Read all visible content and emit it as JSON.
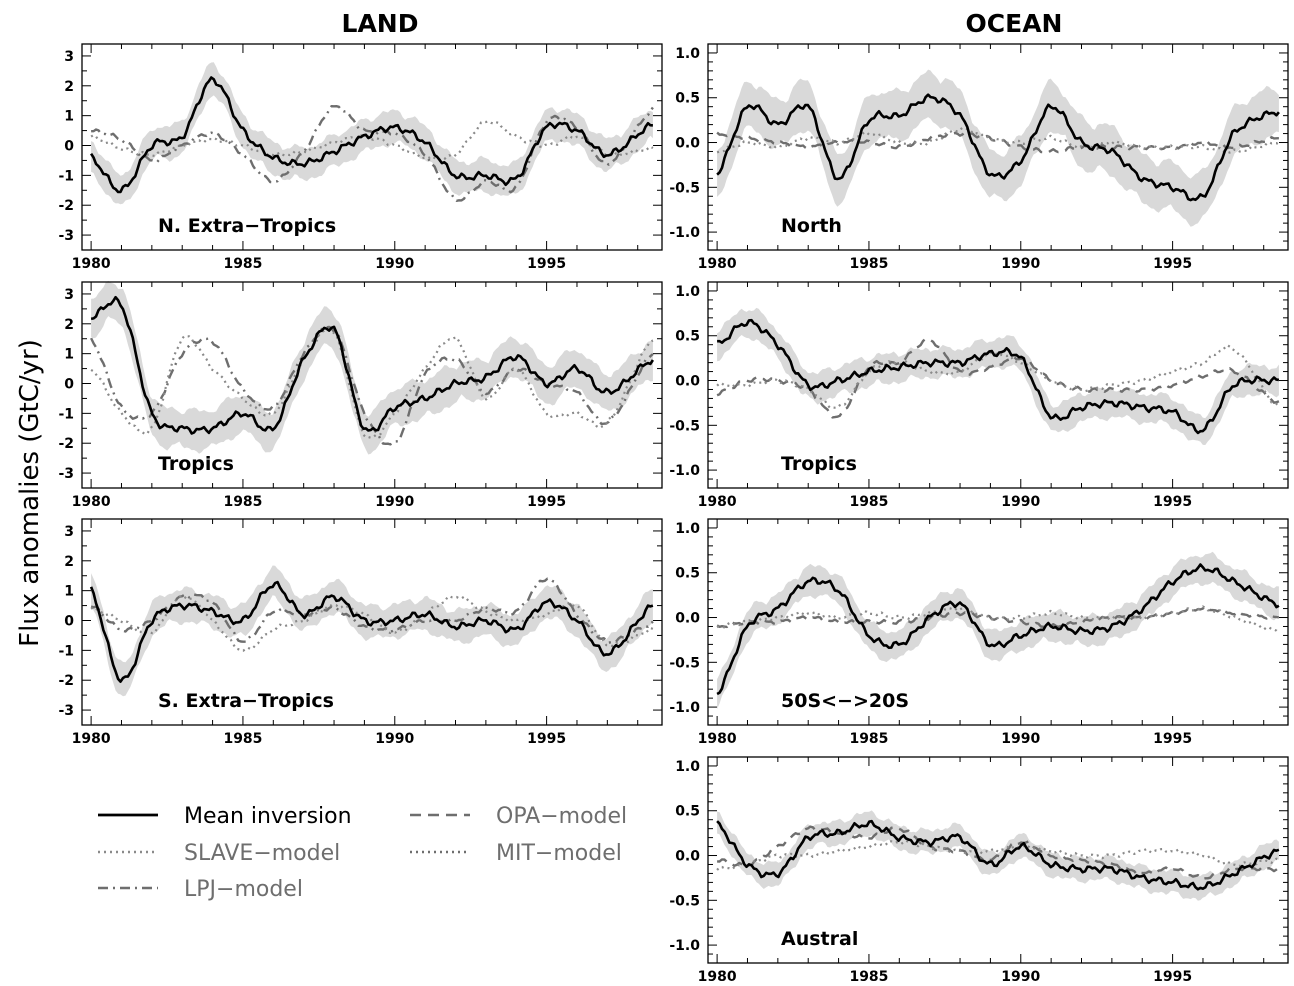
{
  "figure": {
    "column_titles": [
      "LAND",
      "OCEAN"
    ],
    "ylabel": "Flux anomalies (GtC/yr)"
  },
  "legend": [
    {
      "label": "Mean inversion",
      "style": "solid",
      "color": "#000000"
    },
    {
      "label": "OPA−model",
      "style": "dash",
      "color": "#6e6e6e"
    },
    {
      "label": "SLAVE−model",
      "style": "dot",
      "color": "#8a8a8a"
    },
    {
      "label": "MIT−model",
      "style": "dot",
      "color": "#6e6e6e"
    },
    {
      "label": "LPJ−model",
      "style": "dashdot",
      "color": "#6e6e6e"
    }
  ],
  "chart_data": [
    {
      "type": "line",
      "panel": "land-1",
      "label": "N. Extra−Tropics",
      "xlim": [
        1979.7,
        1998.8
      ],
      "ylim": [
        -3.5,
        3.4
      ],
      "xticks": [
        1980,
        1985,
        1990,
        1995
      ],
      "yticks": [
        -3,
        -2,
        -1,
        0,
        1,
        2,
        3
      ],
      "x": [
        1980,
        1981,
        1982,
        1983,
        1984,
        1985,
        1986,
        1987,
        1988,
        1989,
        1990,
        1991,
        1992,
        1993,
        1994,
        1995,
        1996,
        1997,
        1998.5
      ],
      "series": [
        {
          "name": "Mean inversion",
          "style": "solid",
          "color": "#000000",
          "width": 2.6,
          "values": [
            -0.4,
            -1.5,
            0.0,
            0.3,
            2.2,
            0.5,
            -0.4,
            -0.6,
            -0.2,
            0.3,
            0.6,
            0.1,
            -1.0,
            -1.0,
            -1.1,
            0.6,
            0.5,
            -0.3,
            0.7
          ],
          "band": 0.5
        },
        {
          "name": "SLAVE-model",
          "style": "dot",
          "color": "#8a8a8a",
          "width": 2.2,
          "values": [
            0.3,
            -0.1,
            -0.3,
            0.0,
            0.2,
            0.0,
            -0.3,
            -0.2,
            0.1,
            0.3,
            0.0,
            -0.4,
            -0.3,
            0.8,
            0.3,
            0.0,
            0.3,
            -0.3,
            -0.1
          ]
        },
        {
          "name": "LPJ-model",
          "style": "dashdot",
          "color": "#6e6e6e",
          "width": 2.4,
          "values": [
            0.5,
            0.2,
            -0.5,
            0.0,
            0.4,
            -0.3,
            -1.2,
            -0.2,
            1.3,
            0.5,
            0.4,
            -0.3,
            -1.8,
            -1.2,
            -1.4,
            0.8,
            0.6,
            -0.6,
            1.2
          ]
        }
      ]
    },
    {
      "type": "line",
      "panel": "land-2",
      "label": "Tropics",
      "xlim": [
        1979.7,
        1998.8
      ],
      "ylim": [
        -3.5,
        3.4
      ],
      "xticks": [
        1980,
        1985,
        1990,
        1995
      ],
      "yticks": [
        -3,
        -2,
        -1,
        0,
        1,
        2,
        3
      ],
      "x": [
        1980,
        1981,
        1982,
        1983,
        1984,
        1985,
        1986,
        1987,
        1988,
        1989,
        1990,
        1991,
        1992,
        1993,
        1994,
        1995,
        1996,
        1997,
        1998.5
      ],
      "series": [
        {
          "name": "Mean inversion",
          "style": "solid",
          "color": "#000000",
          "width": 2.6,
          "values": [
            2.2,
            2.6,
            -1.0,
            -1.5,
            -1.5,
            -1.0,
            -1.5,
            0.8,
            1.8,
            -1.5,
            -0.8,
            -0.5,
            0.0,
            0.2,
            0.9,
            0.0,
            0.5,
            -0.3,
            0.8
          ],
          "band": 0.6
        },
        {
          "name": "SLAVE-model",
          "style": "dot",
          "color": "#8a8a8a",
          "width": 2.2,
          "values": [
            0.5,
            -1.0,
            -1.5,
            1.5,
            0.5,
            -0.5,
            -1.0,
            0.8,
            1.7,
            -1.7,
            -1.0,
            0.5,
            1.5,
            -0.5,
            0.5,
            -1.0,
            -1.0,
            -1.3,
            1.5
          ]
        },
        {
          "name": "LPJ-model",
          "style": "dashdot",
          "color": "#6e6e6e",
          "width": 2.4,
          "values": [
            1.5,
            -0.8,
            -1.0,
            1.0,
            1.4,
            -0.2,
            -0.8,
            1.0,
            1.8,
            -1.0,
            -2.0,
            0.3,
            0.8,
            -0.3,
            0.5,
            0.0,
            -0.3,
            -1.3,
            1.0
          ]
        }
      ]
    },
    {
      "type": "line",
      "panel": "land-3",
      "label": "S. Extra−Tropics",
      "xlim": [
        1979.7,
        1998.8
      ],
      "ylim": [
        -3.5,
        3.4
      ],
      "xticks": [
        1980,
        1985,
        1990,
        1995
      ],
      "yticks": [
        -3,
        -2,
        -1,
        0,
        1,
        2,
        3
      ],
      "x": [
        1980,
        1981,
        1982,
        1983,
        1984,
        1985,
        1986,
        1987,
        1988,
        1989,
        1990,
        1991,
        1992,
        1993,
        1994,
        1995,
        1996,
        1997,
        1998.5
      ],
      "series": [
        {
          "name": "Mean inversion",
          "style": "solid",
          "color": "#000000",
          "width": 2.6,
          "values": [
            1.0,
            -2.0,
            0.0,
            0.5,
            0.3,
            0.0,
            1.2,
            0.2,
            0.8,
            0.0,
            0.0,
            0.2,
            -0.2,
            0.0,
            -0.3,
            0.6,
            0.0,
            -1.1,
            0.5
          ],
          "band": 0.5
        },
        {
          "name": "SLAVE-model",
          "style": "dot",
          "color": "#8a8a8a",
          "width": 2.2,
          "values": [
            0.4,
            0.0,
            -0.4,
            0.8,
            0.0,
            -1.0,
            -0.3,
            0.0,
            0.5,
            0.2,
            -0.4,
            0.2,
            0.8,
            0.3,
            0.0,
            0.2,
            0.5,
            -0.8,
            -0.3
          ]
        },
        {
          "name": "LPJ-model",
          "style": "dashdot",
          "color": "#6e6e6e",
          "width": 2.4,
          "values": [
            0.5,
            -0.3,
            0.0,
            0.8,
            0.6,
            -0.7,
            0.3,
            0.2,
            0.4,
            -0.2,
            -0.3,
            0.0,
            0.0,
            0.4,
            0.3,
            1.4,
            0.2,
            -0.7,
            -0.1
          ]
        }
      ]
    },
    {
      "type": "line",
      "panel": "ocean-1",
      "label": "North",
      "xlim": [
        1979.7,
        1998.8
      ],
      "ylim": [
        -1.2,
        1.1
      ],
      "xticks": [
        1980,
        1985,
        1990,
        1995
      ],
      "yticks": [
        -1.0,
        -0.5,
        0.0,
        0.5,
        1.0
      ],
      "x": [
        1980,
        1981,
        1982,
        1983,
        1984,
        1985,
        1986,
        1987,
        1988,
        1989,
        1990,
        1991,
        1992,
        1993,
        1994,
        1995,
        1996,
        1997,
        1998.5
      ],
      "series": [
        {
          "name": "Mean inversion",
          "style": "solid",
          "color": "#000000",
          "width": 2.6,
          "values": [
            -0.35,
            0.4,
            0.2,
            0.4,
            -0.4,
            0.25,
            0.3,
            0.5,
            0.3,
            -0.35,
            -0.2,
            0.4,
            0.0,
            -0.1,
            -0.4,
            -0.5,
            -0.6,
            0.1,
            0.35
          ],
          "band": 0.25
        },
        {
          "name": "MIT-model",
          "style": "dot",
          "color": "#8a8a8a",
          "width": 2.2,
          "values": [
            -0.1,
            0.0,
            -0.05,
            0.05,
            0.0,
            0.1,
            0.0,
            0.0,
            0.15,
            0.05,
            0.0,
            0.05,
            -0.05,
            0.0,
            -0.05,
            -0.05,
            -0.05,
            -0.1,
            0.0
          ]
        },
        {
          "name": "OPA-model",
          "style": "dash",
          "color": "#6e6e6e",
          "width": 2.4,
          "values": [
            0.1,
            0.05,
            0.0,
            -0.05,
            0.0,
            0.0,
            -0.05,
            0.05,
            0.1,
            0.05,
            -0.05,
            -0.1,
            -0.05,
            -0.05,
            -0.05,
            -0.05,
            0.0,
            -0.05,
            0.05
          ]
        }
      ]
    },
    {
      "type": "line",
      "panel": "ocean-2",
      "label": "Tropics",
      "xlim": [
        1979.7,
        1998.8
      ],
      "ylim": [
        -1.2,
        1.1
      ],
      "xticks": [
        1980,
        1985,
        1990,
        1995
      ],
      "yticks": [
        -1.0,
        -0.5,
        0.0,
        0.5,
        1.0
      ],
      "x": [
        1980,
        1981,
        1982,
        1983,
        1984,
        1985,
        1986,
        1987,
        1988,
        1989,
        1990,
        1991,
        1992,
        1993,
        1994,
        1995,
        1996,
        1997,
        1998.5
      ],
      "series": [
        {
          "name": "Mean inversion",
          "style": "solid",
          "color": "#000000",
          "width": 2.6,
          "values": [
            0.4,
            0.65,
            0.4,
            -0.05,
            0.0,
            0.1,
            0.15,
            0.2,
            0.2,
            0.3,
            0.25,
            -0.4,
            -0.3,
            -0.25,
            -0.3,
            -0.35,
            -0.55,
            -0.05,
            0.0
          ],
          "band": 0.15
        },
        {
          "name": "MIT-model",
          "style": "dot",
          "color": "#8a8a8a",
          "width": 2.2,
          "values": [
            -0.05,
            -0.05,
            0.0,
            -0.1,
            -0.3,
            0.1,
            0.2,
            0.1,
            0.1,
            0.3,
            0.2,
            0.0,
            -0.1,
            -0.05,
            0.0,
            0.1,
            0.2,
            0.35,
            -0.3
          ]
        },
        {
          "name": "OPA-model",
          "style": "dash",
          "color": "#6e6e6e",
          "width": 2.4,
          "values": [
            -0.15,
            0.0,
            0.0,
            -0.1,
            -0.4,
            0.15,
            0.2,
            0.45,
            0.1,
            0.15,
            0.25,
            0.0,
            -0.1,
            -0.1,
            -0.1,
            -0.05,
            0.05,
            0.1,
            -0.25
          ]
        }
      ]
    },
    {
      "type": "line",
      "panel": "ocean-3",
      "label": "50S<−>20S",
      "xlim": [
        1979.7,
        1998.8
      ],
      "ylim": [
        -1.2,
        1.1
      ],
      "xticks": [
        1980,
        1985,
        1990,
        1995
      ],
      "yticks": [
        -1.0,
        -0.5,
        0.0,
        0.5,
        1.0
      ],
      "x": [
        1980,
        1981,
        1982,
        1983,
        1984,
        1985,
        1986,
        1987,
        1988,
        1989,
        1990,
        1991,
        1992,
        1993,
        1994,
        1995,
        1996,
        1997,
        1998.5
      ],
      "series": [
        {
          "name": "Mean inversion",
          "style": "solid",
          "color": "#000000",
          "width": 2.6,
          "values": [
            -0.85,
            -0.1,
            0.1,
            0.4,
            0.3,
            -0.2,
            -0.3,
            0.0,
            0.15,
            -0.3,
            -0.2,
            -0.1,
            -0.15,
            -0.1,
            0.1,
            0.4,
            0.55,
            0.4,
            0.15
          ],
          "band": 0.15
        },
        {
          "name": "MIT-model",
          "style": "dot",
          "color": "#8a8a8a",
          "width": 2.2,
          "values": [
            -0.1,
            -0.05,
            0.0,
            0.05,
            0.0,
            0.05,
            0.0,
            0.05,
            0.1,
            0.0,
            0.0,
            0.05,
            0.0,
            0.0,
            0.0,
            0.05,
            0.1,
            0.0,
            -0.15
          ]
        },
        {
          "name": "OPA-model",
          "style": "dash",
          "color": "#6e6e6e",
          "width": 2.4,
          "values": [
            -0.1,
            -0.05,
            -0.05,
            0.0,
            -0.05,
            -0.05,
            -0.05,
            0.0,
            0.05,
            0.0,
            -0.05,
            -0.1,
            -0.05,
            0.0,
            0.0,
            0.05,
            0.1,
            0.05,
            0.0
          ]
        }
      ]
    },
    {
      "type": "line",
      "panel": "ocean-4",
      "label": "Austral",
      "xlim": [
        1979.7,
        1998.8
      ],
      "ylim": [
        -1.2,
        1.1
      ],
      "xticks": [
        1980,
        1985,
        1990,
        1995
      ],
      "yticks": [
        -1.0,
        -0.5,
        0.0,
        0.5,
        1.0
      ],
      "x": [
        1980,
        1981,
        1982,
        1983,
        1984,
        1985,
        1986,
        1987,
        1988,
        1989,
        1990,
        1991,
        1992,
        1993,
        1994,
        1995,
        1996,
        1997,
        1998.5
      ],
      "series": [
        {
          "name": "Mean inversion",
          "style": "solid",
          "color": "#000000",
          "width": 2.6,
          "values": [
            0.35,
            -0.1,
            -0.2,
            0.2,
            0.25,
            0.35,
            0.2,
            0.15,
            0.2,
            -0.1,
            0.1,
            -0.1,
            -0.15,
            -0.15,
            -0.25,
            -0.3,
            -0.35,
            -0.2,
            0.05
          ],
          "band": 0.12
        },
        {
          "name": "MIT-model",
          "style": "dot",
          "color": "#8a8a8a",
          "width": 2.2,
          "values": [
            -0.15,
            -0.1,
            0.0,
            0.0,
            0.05,
            0.1,
            0.15,
            0.1,
            0.05,
            0.05,
            0.1,
            0.05,
            0.0,
            0.0,
            0.05,
            0.05,
            0.0,
            -0.1,
            -0.05
          ]
        },
        {
          "name": "OPA-model",
          "style": "dash",
          "color": "#6e6e6e",
          "width": 2.4,
          "values": [
            -0.05,
            -0.1,
            0.1,
            0.3,
            0.25,
            0.2,
            0.3,
            0.1,
            0.05,
            -0.05,
            0.15,
            0.0,
            -0.05,
            -0.1,
            -0.2,
            -0.15,
            -0.25,
            -0.15,
            -0.15
          ]
        }
      ]
    }
  ]
}
